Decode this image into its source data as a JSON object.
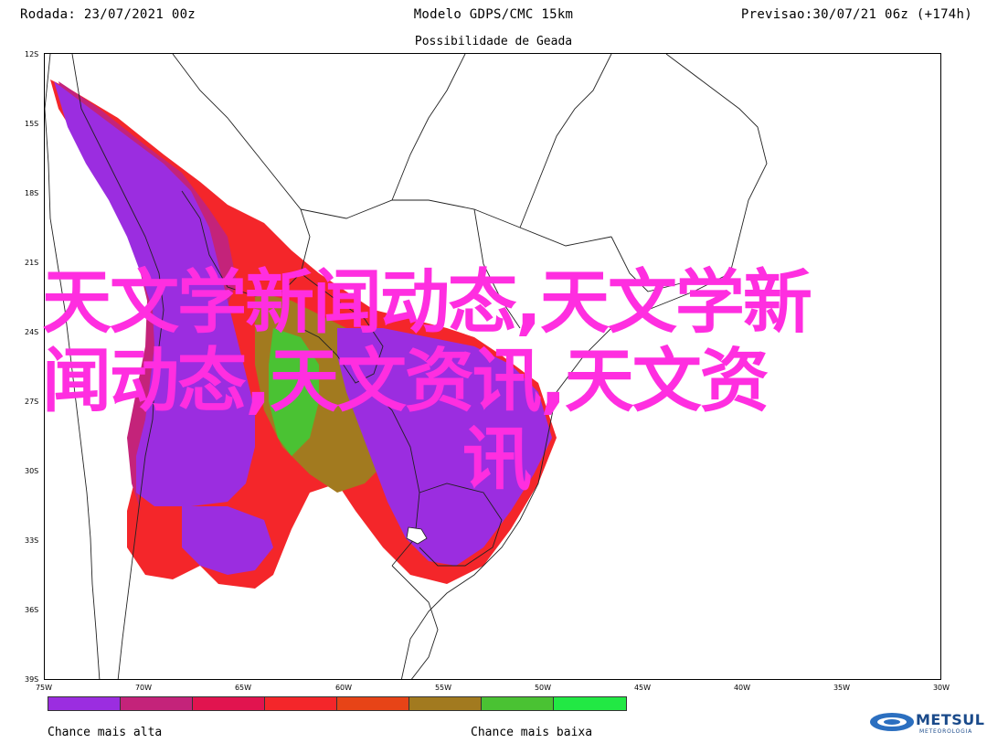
{
  "header": {
    "run": "Rodada: 23/07/2021 00z",
    "model": "Modelo GDPS/CMC 15km",
    "forecast": "Previsao:30/07/21 06z (+174h)"
  },
  "subtitle": "Possibilidade de Geada",
  "axes": {
    "lat_labels": [
      "12S",
      "15S",
      "18S",
      "21S",
      "24S",
      "27S",
      "30S",
      "33S",
      "36S",
      "39S"
    ],
    "lon_labels": [
      "75W",
      "70W",
      "65W",
      "60W",
      "55W",
      "50W",
      "45W",
      "40W",
      "35W",
      "30W"
    ]
  },
  "legend": {
    "colors": [
      "#9b2de0",
      "#c4237a",
      "#e1144f",
      "#f4262a",
      "#e74417",
      "#a27a1f",
      "#4ac233",
      "#22e844"
    ],
    "low_label": "Chance mais alta",
    "high_label": "Chance mais baixa"
  },
  "brand": {
    "name": "METSUL",
    "tagline": "METEOROLOGIA"
  },
  "watermark": {
    "line1": "天文学新闻动态,天文学新",
    "line2": "闻动态,天文资讯,天文资",
    "line3": "讯"
  }
}
